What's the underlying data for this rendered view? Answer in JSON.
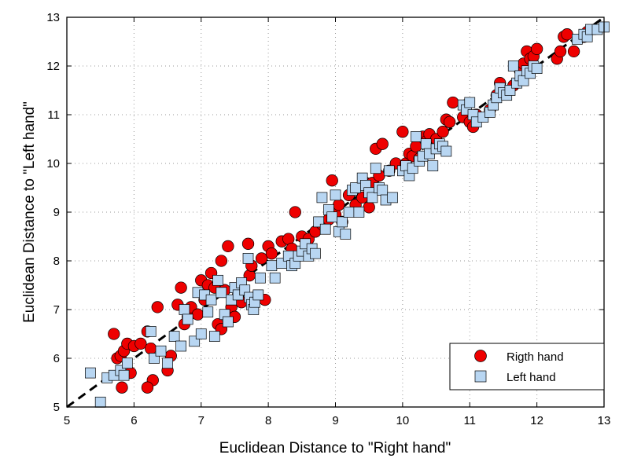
{
  "chart_data": {
    "type": "scatter",
    "title": "",
    "xlabel": "Euclidean Distance to \"Right hand\"",
    "ylabel": "Euclidean Distance to \"Left hand\"",
    "xlim": [
      5,
      13
    ],
    "ylim": [
      5,
      13
    ],
    "xticks": [
      5,
      6,
      7,
      8,
      9,
      10,
      11,
      12,
      13
    ],
    "yticks": [
      5,
      6,
      7,
      8,
      9,
      10,
      11,
      12,
      13
    ],
    "grid": true,
    "legend_position": "bottom-right",
    "reference_line": {
      "style": "dashed",
      "color": "#000000",
      "from": [
        5,
        5
      ],
      "to": [
        13,
        13
      ]
    },
    "series": [
      {
        "name": "Rigth hand",
        "marker": "circle",
        "color": "#ee0000",
        "points": [
          [
            5.7,
            6.5
          ],
          [
            5.75,
            6.0
          ],
          [
            5.8,
            6.05
          ],
          [
            5.85,
            6.15
          ],
          [
            5.9,
            6.3
          ],
          [
            5.95,
            5.7
          ],
          [
            5.82,
            5.4
          ],
          [
            6.0,
            6.25
          ],
          [
            6.1,
            6.3
          ],
          [
            6.2,
            6.55
          ],
          [
            6.25,
            6.2
          ],
          [
            6.28,
            5.55
          ],
          [
            6.2,
            5.4
          ],
          [
            6.35,
            7.05
          ],
          [
            6.5,
            5.75
          ],
          [
            6.55,
            6.05
          ],
          [
            6.65,
            7.1
          ],
          [
            6.7,
            7.45
          ],
          [
            6.75,
            6.7
          ],
          [
            6.8,
            6.85
          ],
          [
            6.85,
            7.05
          ],
          [
            6.95,
            6.9
          ],
          [
            7.0,
            7.6
          ],
          [
            7.05,
            7.2
          ],
          [
            7.1,
            7.5
          ],
          [
            7.15,
            7.75
          ],
          [
            7.2,
            7.45
          ],
          [
            7.25,
            6.7
          ],
          [
            7.3,
            6.6
          ],
          [
            7.3,
            8.0
          ],
          [
            7.35,
            7.4
          ],
          [
            7.4,
            8.3
          ],
          [
            7.45,
            7.05
          ],
          [
            7.5,
            6.85
          ],
          [
            7.55,
            7.3
          ],
          [
            7.6,
            7.15
          ],
          [
            7.7,
            8.35
          ],
          [
            7.72,
            7.7
          ],
          [
            7.75,
            7.9
          ],
          [
            7.8,
            7.25
          ],
          [
            7.9,
            8.05
          ],
          [
            7.95,
            7.2
          ],
          [
            8.0,
            8.3
          ],
          [
            8.05,
            8.15
          ],
          [
            8.2,
            8.4
          ],
          [
            8.3,
            8.45
          ],
          [
            8.35,
            8.25
          ],
          [
            8.4,
            9.0
          ],
          [
            8.5,
            8.5
          ],
          [
            8.55,
            8.15
          ],
          [
            8.6,
            8.45
          ],
          [
            8.7,
            8.6
          ],
          [
            8.8,
            8.75
          ],
          [
            8.9,
            8.85
          ],
          [
            8.95,
            9.65
          ],
          [
            9.0,
            8.95
          ],
          [
            9.05,
            9.15
          ],
          [
            9.1,
            8.8
          ],
          [
            9.2,
            9.35
          ],
          [
            9.3,
            9.15
          ],
          [
            9.4,
            9.3
          ],
          [
            9.45,
            9.6
          ],
          [
            9.5,
            9.1
          ],
          [
            9.55,
            9.6
          ],
          [
            9.6,
            10.3
          ],
          [
            9.65,
            9.75
          ],
          [
            9.7,
            10.4
          ],
          [
            9.8,
            9.85
          ],
          [
            9.9,
            10.0
          ],
          [
            10.0,
            10.65
          ],
          [
            10.05,
            10.0
          ],
          [
            10.1,
            10.2
          ],
          [
            10.15,
            10.15
          ],
          [
            10.2,
            10.35
          ],
          [
            10.25,
            10.1
          ],
          [
            10.3,
            10.55
          ],
          [
            10.35,
            10.45
          ],
          [
            10.4,
            10.6
          ],
          [
            10.5,
            10.5
          ],
          [
            10.6,
            10.65
          ],
          [
            10.65,
            10.9
          ],
          [
            10.7,
            10.85
          ],
          [
            10.75,
            11.25
          ],
          [
            10.9,
            10.95
          ],
          [
            10.95,
            11.2
          ],
          [
            11.0,
            10.85
          ],
          [
            11.05,
            10.75
          ],
          [
            11.1,
            11.0
          ],
          [
            11.3,
            11.1
          ],
          [
            11.4,
            11.4
          ],
          [
            11.45,
            11.65
          ],
          [
            11.55,
            11.45
          ],
          [
            11.65,
            11.6
          ],
          [
            11.75,
            11.9
          ],
          [
            11.8,
            12.05
          ],
          [
            11.85,
            12.3
          ],
          [
            11.9,
            12.15
          ],
          [
            11.95,
            12.2
          ],
          [
            12.0,
            12.35
          ],
          [
            12.3,
            12.15
          ],
          [
            12.35,
            12.3
          ],
          [
            12.4,
            12.6
          ],
          [
            12.45,
            12.65
          ],
          [
            12.55,
            12.3
          ],
          [
            12.7,
            12.6
          ],
          [
            12.75,
            12.7
          ]
        ]
      },
      {
        "name": "Left hand",
        "marker": "square",
        "color": "#b8d6f2",
        "points": [
          [
            5.35,
            5.7
          ],
          [
            5.5,
            5.1
          ],
          [
            5.6,
            5.6
          ],
          [
            5.7,
            5.65
          ],
          [
            5.8,
            5.75
          ],
          [
            5.85,
            5.65
          ],
          [
            5.9,
            5.9
          ],
          [
            6.25,
            6.55
          ],
          [
            6.3,
            6.0
          ],
          [
            6.4,
            6.15
          ],
          [
            6.5,
            5.9
          ],
          [
            6.6,
            6.45
          ],
          [
            6.7,
            6.25
          ],
          [
            6.75,
            7.0
          ],
          [
            6.8,
            6.8
          ],
          [
            6.9,
            6.35
          ],
          [
            6.95,
            7.35
          ],
          [
            7.0,
            6.5
          ],
          [
            7.05,
            7.3
          ],
          [
            7.1,
            6.95
          ],
          [
            7.15,
            7.2
          ],
          [
            7.2,
            6.45
          ],
          [
            7.25,
            7.6
          ],
          [
            7.3,
            7.35
          ],
          [
            7.35,
            6.9
          ],
          [
            7.4,
            6.75
          ],
          [
            7.45,
            7.2
          ],
          [
            7.5,
            7.45
          ],
          [
            7.55,
            7.3
          ],
          [
            7.6,
            7.55
          ],
          [
            7.65,
            7.4
          ],
          [
            7.7,
            8.05
          ],
          [
            7.72,
            7.25
          ],
          [
            7.75,
            7.1
          ],
          [
            7.78,
            7.0
          ],
          [
            7.8,
            7.15
          ],
          [
            7.85,
            7.3
          ],
          [
            7.88,
            7.65
          ],
          [
            8.05,
            7.9
          ],
          [
            8.1,
            7.65
          ],
          [
            8.2,
            7.95
          ],
          [
            8.3,
            8.1
          ],
          [
            8.35,
            7.9
          ],
          [
            8.4,
            7.95
          ],
          [
            8.45,
            8.1
          ],
          [
            8.5,
            8.2
          ],
          [
            8.55,
            8.35
          ],
          [
            8.6,
            8.1
          ],
          [
            8.65,
            8.25
          ],
          [
            8.7,
            8.15
          ],
          [
            8.75,
            8.8
          ],
          [
            8.8,
            9.3
          ],
          [
            8.85,
            8.65
          ],
          [
            8.9,
            9.05
          ],
          [
            8.95,
            8.9
          ],
          [
            9.0,
            9.35
          ],
          [
            9.05,
            8.6
          ],
          [
            9.1,
            8.8
          ],
          [
            9.15,
            8.55
          ],
          [
            9.2,
            9.0
          ],
          [
            9.25,
            9.45
          ],
          [
            9.3,
            9.5
          ],
          [
            9.35,
            9.0
          ],
          [
            9.4,
            9.7
          ],
          [
            9.45,
            9.55
          ],
          [
            9.5,
            9.4
          ],
          [
            9.55,
            9.3
          ],
          [
            9.6,
            9.9
          ],
          [
            9.65,
            9.5
          ],
          [
            9.7,
            9.45
          ],
          [
            9.75,
            9.25
          ],
          [
            9.8,
            9.85
          ],
          [
            9.85,
            9.3
          ],
          [
            10.0,
            9.85
          ],
          [
            10.05,
            9.95
          ],
          [
            10.1,
            9.75
          ],
          [
            10.15,
            9.9
          ],
          [
            10.2,
            10.55
          ],
          [
            10.25,
            10.05
          ],
          [
            10.3,
            10.15
          ],
          [
            10.35,
            10.4
          ],
          [
            10.4,
            10.2
          ],
          [
            10.45,
            9.95
          ],
          [
            10.5,
            10.3
          ],
          [
            10.55,
            10.4
          ],
          [
            10.6,
            10.35
          ],
          [
            10.65,
            10.25
          ],
          [
            10.9,
            11.2
          ],
          [
            10.95,
            11.1
          ],
          [
            11.0,
            11.25
          ],
          [
            11.05,
            11.0
          ],
          [
            11.1,
            10.85
          ],
          [
            11.2,
            10.95
          ],
          [
            11.3,
            11.05
          ],
          [
            11.35,
            11.2
          ],
          [
            11.4,
            11.35
          ],
          [
            11.45,
            11.55
          ],
          [
            11.5,
            11.45
          ],
          [
            11.55,
            11.4
          ],
          [
            11.6,
            11.5
          ],
          [
            11.65,
            12.0
          ],
          [
            11.7,
            11.65
          ],
          [
            11.75,
            11.8
          ],
          [
            11.8,
            11.7
          ],
          [
            11.85,
            11.9
          ],
          [
            11.9,
            11.85
          ],
          [
            11.95,
            12.0
          ],
          [
            12.0,
            11.95
          ],
          [
            12.6,
            12.55
          ],
          [
            12.7,
            12.65
          ],
          [
            12.75,
            12.6
          ],
          [
            12.8,
            12.75
          ],
          [
            12.9,
            12.75
          ],
          [
            13.0,
            12.8
          ]
        ]
      }
    ]
  }
}
